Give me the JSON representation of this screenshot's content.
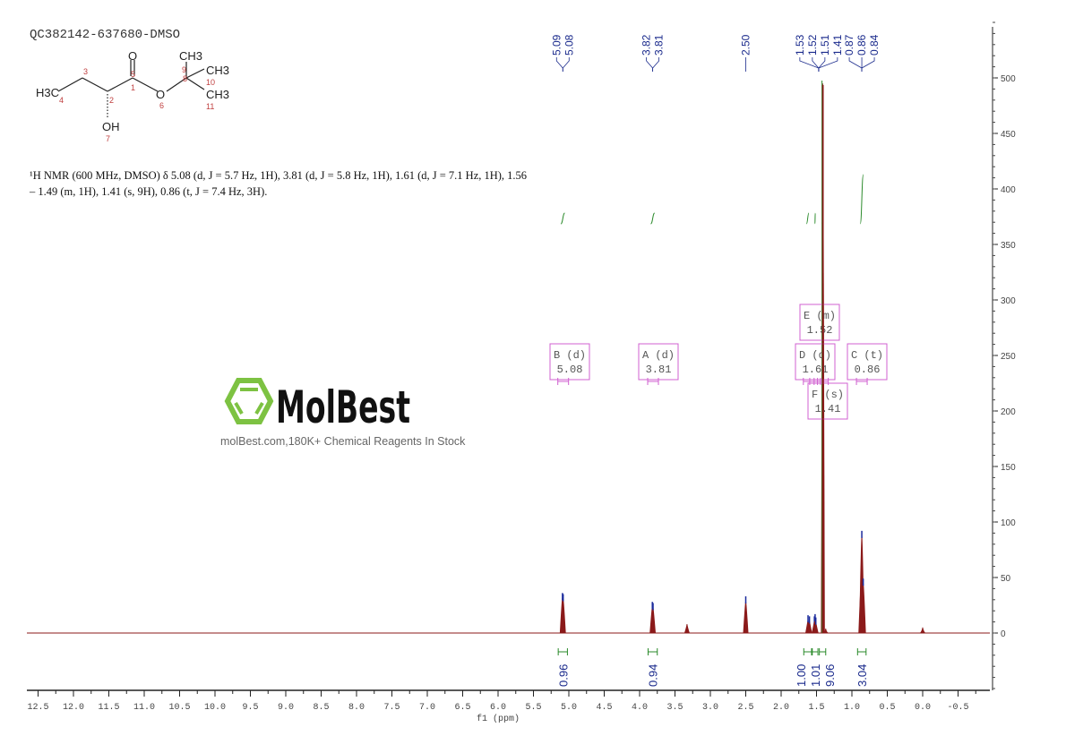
{
  "sample_id": "QC382142-637680-DMSO",
  "nmr_description": "¹H NMR (600 MHz, DMSO) δ 5.08 (d, J = 5.7 Hz, 1H), 3.81 (d, J = 5.8 Hz, 1H), 1.61 (d, J = 7.1 Hz, 1H), 1.56 – 1.49 (m, 1H), 1.41 (s, 9H), 0.86 (t, J = 7.4 Hz, 3H).",
  "structure": {
    "atoms": [
      "O",
      "CH3",
      "CH3",
      "H3C",
      "O",
      "CH3",
      "OH"
    ],
    "numbers": [
      "1",
      "2",
      "3",
      "4",
      "5",
      "6",
      "7",
      "8",
      "9",
      "10",
      "11"
    ]
  },
  "watermark": {
    "logo": "MolBest",
    "tagline": "molBest.com,180K+ Chemical Reagents In Stock",
    "color": "#7dc242"
  },
  "chart_data": {
    "type": "line",
    "title": "",
    "xlabel": "f1 (ppm)",
    "ylabel": "",
    "xlim": [
      12.7,
      -0.9
    ],
    "ylim": [
      -50,
      550
    ],
    "x_ticks": [
      "12.5",
      "12.0",
      "11.5",
      "11.0",
      "10.5",
      "10.0",
      "9.5",
      "9.0",
      "8.5",
      "8.0",
      "7.5",
      "7.0",
      "6.5",
      "6.0",
      "5.5",
      "5.0",
      "4.5",
      "4.0",
      "3.5",
      "3.0",
      "2.5",
      "2.0",
      "1.5",
      "1.0",
      "0.5",
      "0.0",
      "-0.5"
    ],
    "y_ticks": [
      "0",
      "50",
      "100",
      "150",
      "200",
      "250",
      "300",
      "350",
      "400",
      "450",
      "500"
    ],
    "spectrum_color": "#8b1a1a",
    "peaks": [
      {
        "ppm": 5.09,
        "intensity": 32
      },
      {
        "ppm": 5.08,
        "intensity": 31
      },
      {
        "ppm": 3.82,
        "intensity": 24
      },
      {
        "ppm": 3.81,
        "intensity": 23
      },
      {
        "ppm": 3.33,
        "intensity": 8
      },
      {
        "ppm": 2.5,
        "intensity": 29
      },
      {
        "ppm": 1.62,
        "intensity": 12
      },
      {
        "ppm": 1.6,
        "intensity": 11
      },
      {
        "ppm": 1.53,
        "intensity": 11
      },
      {
        "ppm": 1.52,
        "intensity": 13
      },
      {
        "ppm": 1.51,
        "intensity": 10
      },
      {
        "ppm": 1.41,
        "intensity": 495
      },
      {
        "ppm": 1.37,
        "intensity": 4
      },
      {
        "ppm": 0.87,
        "intensity": 45
      },
      {
        "ppm": 0.86,
        "intensity": 88
      },
      {
        "ppm": 0.84,
        "intensity": 45
      },
      {
        "ppm": 0.0,
        "intensity": 5
      }
    ],
    "peak_labels": [
      {
        "group": [
          "5.09",
          "5.08"
        ],
        "ppm": 5.085
      },
      {
        "group": [
          "3.82",
          "3.81"
        ],
        "ppm": 3.815
      },
      {
        "group": [
          "2.50"
        ],
        "ppm": 2.5
      },
      {
        "group": [
          "1.53",
          "1.52",
          "1.51",
          "1.41"
        ],
        "ppm": 1.47
      },
      {
        "group": [
          "0.87",
          "0.86",
          "0.84"
        ],
        "ppm": 0.86
      }
    ],
    "integrals": [
      {
        "from": 5.15,
        "to": 5.02,
        "value": "0.96"
      },
      {
        "from": 3.88,
        "to": 3.75,
        "value": "0.94"
      },
      {
        "from": 1.68,
        "to": 1.57,
        "value": "1.00"
      },
      {
        "from": 1.56,
        "to": 1.48,
        "value": "1.01"
      },
      {
        "from": 1.46,
        "to": 1.37,
        "value": "9.06"
      },
      {
        "from": 0.92,
        "to": 0.8,
        "value": "3.04"
      }
    ],
    "multiplets": [
      {
        "letter": "B",
        "type": "(d)",
        "shift": "5.08",
        "ppm": 5.08
      },
      {
        "letter": "A",
        "type": "(d)",
        "shift": "3.81",
        "ppm": 3.81
      },
      {
        "letter": "E",
        "type": "(m)",
        "shift": "1.52",
        "ppm": 1.52
      },
      {
        "letter": "D",
        "type": "(d)",
        "shift": "1.61",
        "ppm": 1.61
      },
      {
        "letter": "F",
        "type": "(s)",
        "shift": "1.41",
        "ppm": 1.41
      },
      {
        "letter": "C",
        "type": "(t)",
        "shift": "0.86",
        "ppm": 0.86
      }
    ]
  }
}
